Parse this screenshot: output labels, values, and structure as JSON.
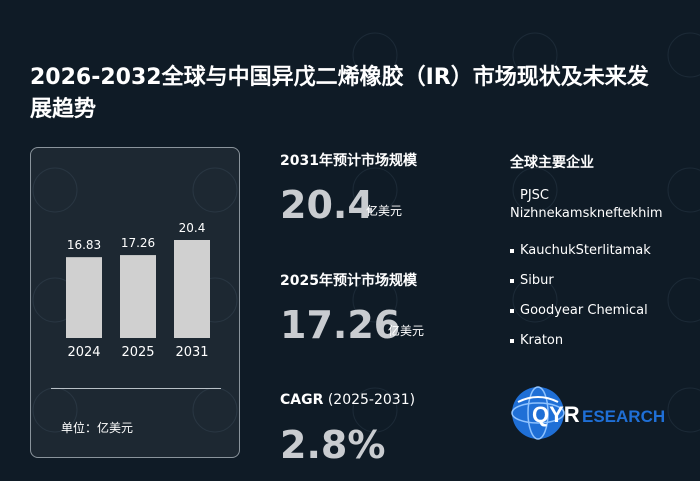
{
  "title": "2026-2032全球与中国异戊二烯橡胶（IR）市场现状及未来发展趋势",
  "chart_data": {
    "type": "bar",
    "categories": [
      "2024",
      "2025",
      "2031"
    ],
    "values": [
      16.83,
      17.26,
      20.4
    ],
    "value_labels": [
      "16.83",
      "17.26",
      "20.4"
    ],
    "bar_color": "#d0d0d0",
    "unit_label": "单位：亿美元"
  },
  "stats": {
    "forecast_2031": {
      "label": "2031年预计市场规模",
      "value": "20.4",
      "unit": "亿美元"
    },
    "forecast_2025": {
      "label": "2025年预计市场规模",
      "value": "17.26",
      "unit": "亿美元"
    },
    "cagr": {
      "label": "CAGR",
      "period": "(2025-2031)",
      "value": "2.8%"
    }
  },
  "companies": {
    "title": "全球主要企业",
    "items": [
      "PJSC Nizhnekamskneftekhim",
      "KauchukSterlitamak",
      "Sibur",
      "Goodyear Chemical",
      "Kraton"
    ]
  },
  "logo": {
    "text_q": "QYR",
    "text_rest": "ESEARCH",
    "icon": "globe-icon",
    "accent": "#1f6fd6"
  },
  "colors": {
    "background": "#0f1b26",
    "value_gray": "#c9ccd0"
  }
}
